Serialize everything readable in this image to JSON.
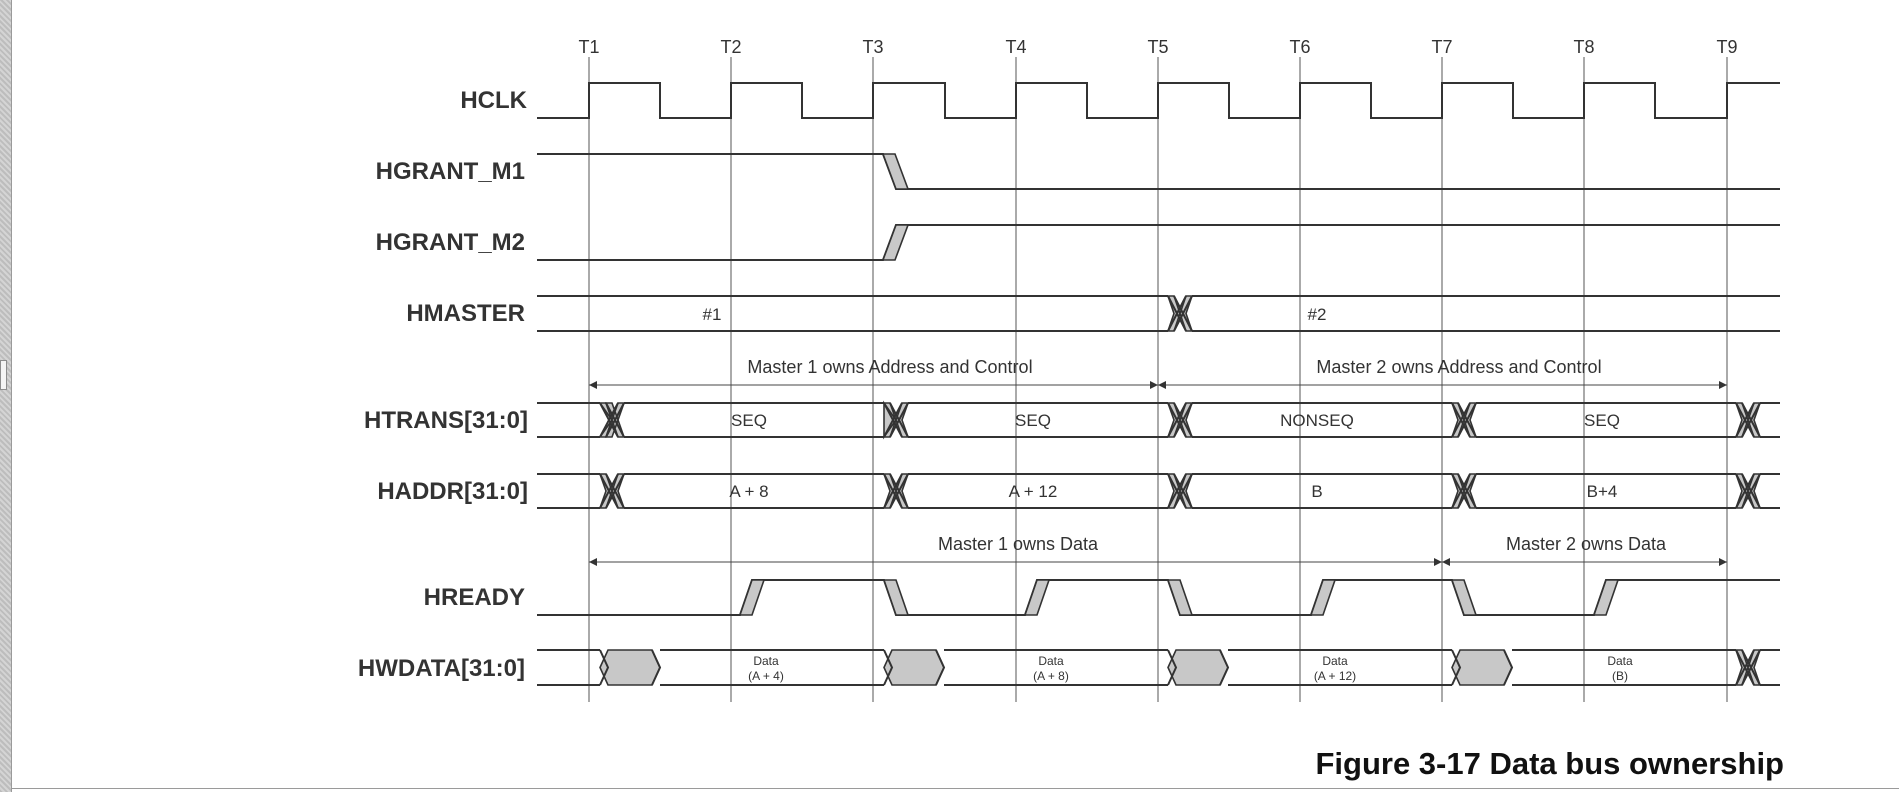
{
  "caption": "Figure 3-17 Data bus ownership",
  "clock_ticks": [
    "T1",
    "T2",
    "T3",
    "T4",
    "T5",
    "T6",
    "T7",
    "T8",
    "T9"
  ],
  "signals": {
    "hclk": "HCLK",
    "hgrant_m1": "HGRANT_M1",
    "hgrant_m2": "HGRANT_M2",
    "hmaster": "HMASTER",
    "htrans": "HTRANS[31:0]",
    "haddr": "HADDR[31:0]",
    "hready": "HREADY",
    "hwdata": "HWDATA[31:0]"
  },
  "hmaster_values": [
    "#1",
    "#2"
  ],
  "htrans_values": [
    "SEQ",
    "SEQ",
    "NONSEQ",
    "SEQ"
  ],
  "haddr_values": [
    "A + 8",
    "A + 12",
    "B",
    "B+4"
  ],
  "hwdata_values": [
    {
      "line1": "Data",
      "line2": "(A + 4)"
    },
    {
      "line1": "Data",
      "line2": "(A + 8)"
    },
    {
      "line1": "Data",
      "line2": "(A + 12)"
    },
    {
      "line1": "Data",
      "line2": "(B)"
    }
  ],
  "annotations": {
    "m1_addr": "Master 1 owns Address and Control",
    "m2_addr": "Master 2 owns Address and Control",
    "m1_data": "Master 1 owns Data",
    "m2_data": "Master 2 owns Data"
  }
}
